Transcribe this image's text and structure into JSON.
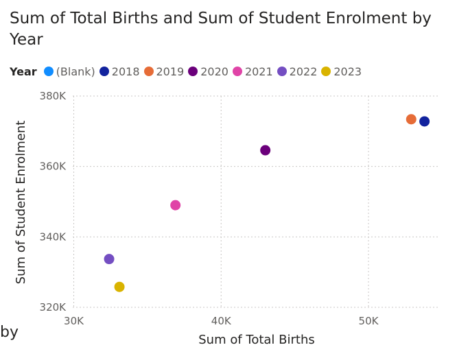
{
  "chart_data": {
    "type": "scatter",
    "title": "Sum of Total Births and Sum of Student Enrolment by Year",
    "xlabel": "Sum of Total Births",
    "ylabel": "Sum of Student Enrolment",
    "xlim": [
      30000,
      55000
    ],
    "ylim": [
      320000,
      380000
    ],
    "x_ticks": [
      30000,
      40000,
      50000
    ],
    "x_tick_labels": [
      "30K",
      "40K",
      "50K"
    ],
    "y_ticks": [
      320000,
      340000,
      360000,
      380000
    ],
    "y_tick_labels": [
      "320K",
      "340K",
      "360K",
      "380K"
    ],
    "grid": true,
    "legend_title": "Year",
    "legend_position": "top-left",
    "series": [
      {
        "name": "(Blank)",
        "color": "#118DFF",
        "points": []
      },
      {
        "name": "2018",
        "color": "#12239E",
        "points": [
          [
            53800,
            372800
          ]
        ]
      },
      {
        "name": "2019",
        "color": "#E66C37",
        "points": [
          [
            52900,
            373400
          ]
        ]
      },
      {
        "name": "2020",
        "color": "#6B007B",
        "points": [
          [
            43000,
            364600
          ]
        ]
      },
      {
        "name": "2021",
        "color": "#E044A7",
        "points": [
          [
            36900,
            349000
          ]
        ]
      },
      {
        "name": "2022",
        "color": "#744EC2",
        "points": [
          [
            32400,
            333700
          ]
        ]
      },
      {
        "name": "2023",
        "color": "#D9B300",
        "points": [
          [
            33100,
            325800
          ]
        ]
      }
    ]
  },
  "stray_text": "by"
}
